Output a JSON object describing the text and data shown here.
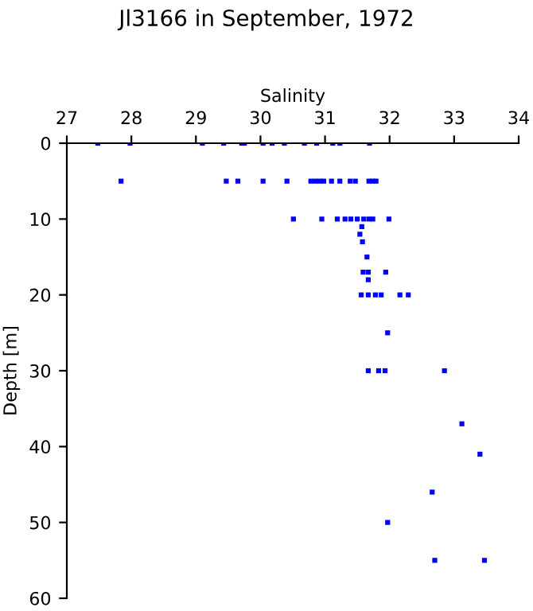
{
  "chart_data": {
    "type": "scatter",
    "title": "Jl3166 in September, 1972",
    "xlabel": "Salinity",
    "ylabel": "Depth [m]",
    "xlim": [
      27,
      34
    ],
    "xticks": [
      27,
      28,
      29,
      30,
      31,
      32,
      33,
      34
    ],
    "ylim": [
      60,
      0
    ],
    "yticks": [
      0,
      10,
      20,
      30,
      40,
      50,
      60
    ],
    "marker": "square",
    "grid": false,
    "series": [
      {
        "color": "#0000ff",
        "x": [
          27.48,
          27.98,
          29.1,
          29.43,
          29.71,
          29.75,
          30.04,
          30.18,
          30.37,
          30.68,
          30.87,
          31.12,
          31.23,
          31.69,
          27.84,
          29.47,
          29.65,
          30.04,
          30.41,
          30.78,
          30.85,
          30.92,
          30.98,
          31.1,
          31.23,
          31.39,
          31.47,
          31.68,
          31.74,
          31.79,
          30.51,
          30.95,
          31.19,
          31.31,
          31.4,
          31.5,
          31.6,
          31.68,
          31.74,
          31.99,
          31.57,
          31.54,
          31.58,
          31.65,
          31.59,
          31.67,
          31.94,
          31.67,
          31.56,
          31.67,
          31.78,
          31.87,
          32.16,
          32.29,
          31.97,
          31.67,
          31.83,
          31.93,
          32.85,
          33.12,
          33.4,
          32.66,
          31.97,
          32.7,
          33.47
        ],
        "values": [
          0,
          0,
          0,
          0,
          0,
          0,
          0,
          0,
          0,
          0,
          0,
          0,
          0,
          0,
          5,
          5,
          5,
          5,
          5,
          5,
          5,
          5,
          5,
          5,
          5,
          5,
          5,
          5,
          5,
          5,
          10,
          10,
          10,
          10,
          10,
          10,
          10,
          10,
          10,
          10,
          11,
          12,
          13,
          15,
          17,
          17,
          17,
          18,
          20,
          20,
          20,
          20,
          20,
          20,
          25,
          30,
          30,
          30,
          30,
          37,
          41,
          46,
          50,
          55,
          55
        ]
      }
    ]
  }
}
